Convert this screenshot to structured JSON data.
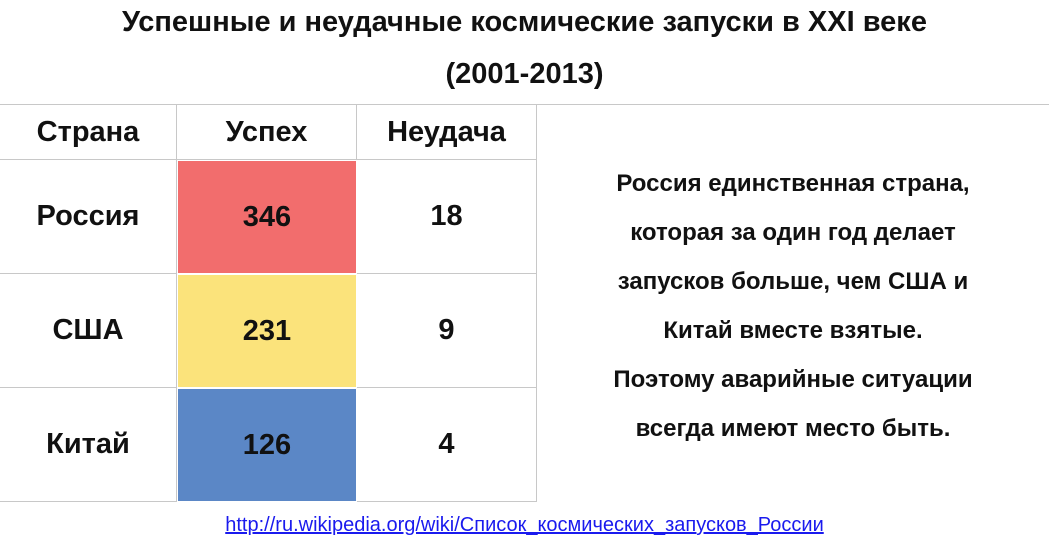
{
  "header": {
    "title_lines": [
      "Успешные и неудачные космические запуски в XXI веке",
      "(2001-2013)"
    ]
  },
  "table": {
    "columns": [
      "Страна",
      "Успех",
      "Неудача"
    ],
    "rows": [
      {
        "country": "Россия",
        "success": 346,
        "failure": 18,
        "color": "#f26d6d"
      },
      {
        "country": "США",
        "success": 231,
        "failure": 9,
        "color": "#fbe37b"
      },
      {
        "country": "Китай",
        "success": 126,
        "failure": 4,
        "color": "#5b87c6"
      }
    ]
  },
  "note": {
    "lines": [
      "Россия единственная страна,",
      "которая за один год делает",
      "запусков больше, чем США и",
      "Китай вместе взятые.",
      "Поэтому аварийные ситуации",
      "всегда имеют место быть."
    ]
  },
  "source": {
    "link": "http://ru.wikipedia.org/wiki/Список_космических_запусков_России"
  }
}
